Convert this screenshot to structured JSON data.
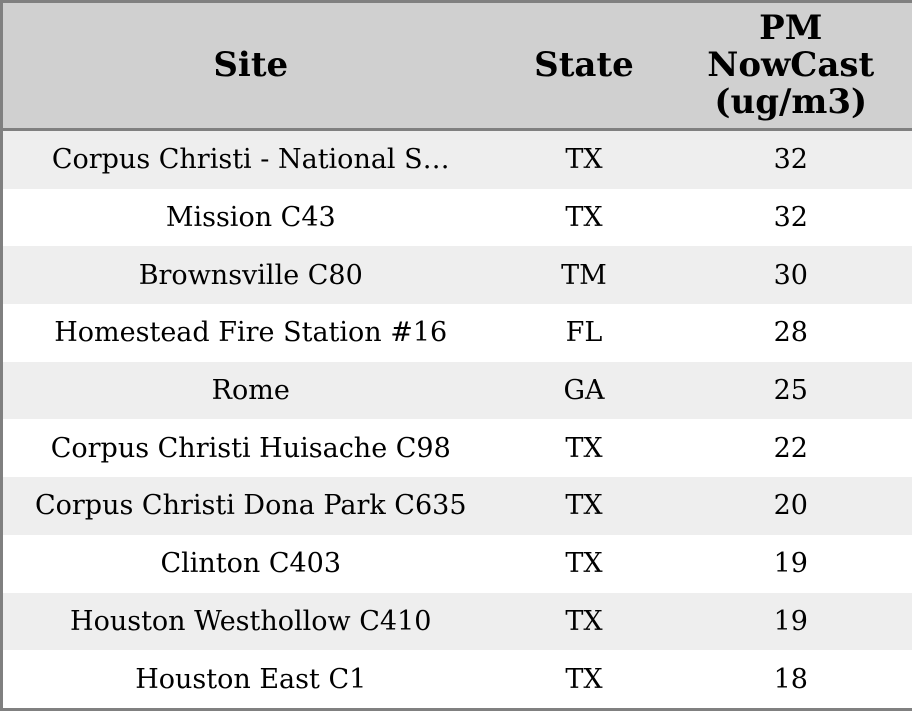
{
  "table": {
    "header": {
      "site": "Site",
      "state": "State",
      "pm_label": "PM NowCast (ug/m3)",
      "pm_lines": [
        "PM",
        "NowCast",
        "(ug/m3)"
      ]
    },
    "rows": [
      {
        "site": "Corpus Christi - National S…",
        "state": "TX",
        "pm_nowcast": "32"
      },
      {
        "site": "Mission C43",
        "state": "TX",
        "pm_nowcast": "32"
      },
      {
        "site": "Brownsville C80",
        "state": "TM",
        "pm_nowcast": "30"
      },
      {
        "site": "Homestead Fire Station #16",
        "state": "FL",
        "pm_nowcast": "28"
      },
      {
        "site": "Rome",
        "state": "GA",
        "pm_nowcast": "25"
      },
      {
        "site": "Corpus Christi Huisache C98",
        "state": "TX",
        "pm_nowcast": "22"
      },
      {
        "site": "Corpus Christi Dona Park C635",
        "state": "TX",
        "pm_nowcast": "20"
      },
      {
        "site": "Clinton C403",
        "state": "TX",
        "pm_nowcast": "19"
      },
      {
        "site": "Houston Westhollow C410",
        "state": "TX",
        "pm_nowcast": "19"
      },
      {
        "site": "Houston East C1",
        "state": "TX",
        "pm_nowcast": "18"
      }
    ]
  },
  "colors": {
    "border": "#808080",
    "header_bg": "#d0d0d0",
    "row_alt_bg": "#eeeeee",
    "row_bg": "#ffffff",
    "text": "#000000"
  }
}
